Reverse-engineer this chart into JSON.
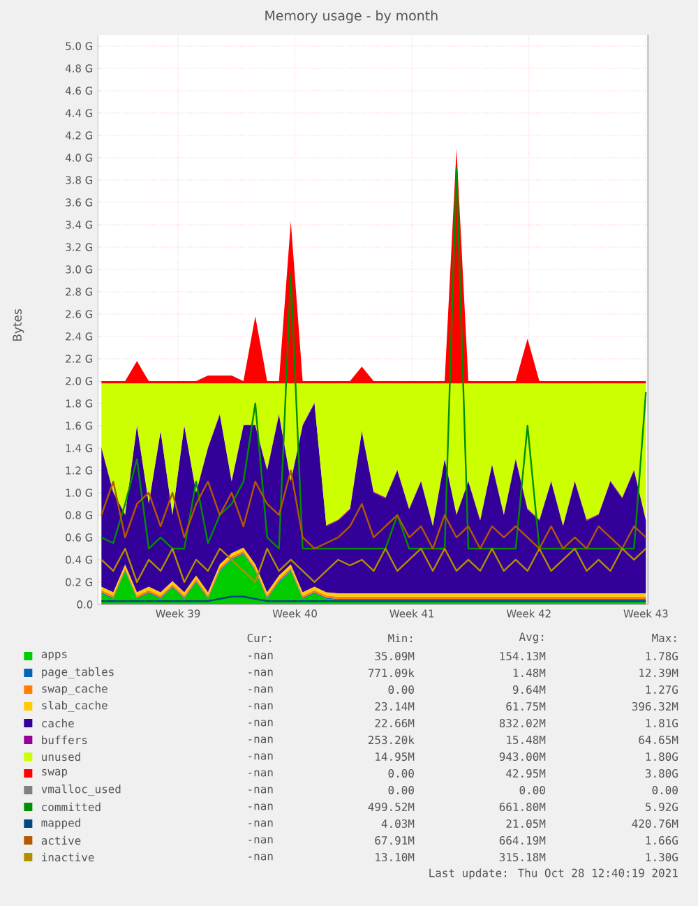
{
  "chart_data": {
    "type": "area",
    "title": "Memory usage - by month",
    "ylabel": "Bytes",
    "stacked": true,
    "grid": true,
    "legend": "bottom",
    "xlim": [
      "2021-09-22T05:00",
      "2021-10-25T03:00"
    ],
    "ylim": [
      0,
      5.1
    ],
    "xticks": [
      {
        "value": "2021-09-27",
        "label": "Week 39"
      },
      {
        "value": "2021-10-04",
        "label": "Week 40"
      },
      {
        "value": "2021-10-11",
        "label": "Week 41"
      },
      {
        "value": "2021-10-18",
        "label": "Week 42"
      },
      {
        "value": "2021-10-25",
        "label": "Week 43"
      }
    ],
    "yticks": [
      {
        "value": 0,
        "label": "0.0"
      },
      {
        "value": 0.2,
        "label": "0.2 G"
      },
      {
        "value": 0.4,
        "label": "0.4 G"
      },
      {
        "value": 0.6,
        "label": "0.6 G"
      },
      {
        "value": 0.8,
        "label": "0.8 G"
      },
      {
        "value": 1.0,
        "label": "1.0 G"
      },
      {
        "value": 1.2,
        "label": "1.2 G"
      },
      {
        "value": 1.4,
        "label": "1.4 G"
      },
      {
        "value": 1.6,
        "label": "1.6 G"
      },
      {
        "value": 1.8,
        "label": "1.8 G"
      },
      {
        "value": 2.0,
        "label": "2.0 G"
      },
      {
        "value": 2.2,
        "label": "2.2 G"
      },
      {
        "value": 2.4,
        "label": "2.4 G"
      },
      {
        "value": 2.6,
        "label": "2.6 G"
      },
      {
        "value": 2.8,
        "label": "2.8 G"
      },
      {
        "value": 3.0,
        "label": "3.0 G"
      },
      {
        "value": 3.2,
        "label": "3.2 G"
      },
      {
        "value": 3.4,
        "label": "3.4 G"
      },
      {
        "value": 3.6,
        "label": "3.6 G"
      },
      {
        "value": 3.8,
        "label": "3.8 G"
      },
      {
        "value": 4.0,
        "label": "4.0 G"
      },
      {
        "value": 4.2,
        "label": "4.2 G"
      },
      {
        "value": 4.4,
        "label": "4.4 G"
      },
      {
        "value": 4.6,
        "label": "4.6 G"
      },
      {
        "value": 4.8,
        "label": "4.8 G"
      },
      {
        "value": 5.0,
        "label": "5.0 G"
      }
    ],
    "x": [
      "2021-09-22T10:00",
      "2021-09-23T03:00",
      "2021-09-23T20:00",
      "2021-09-24T13:00",
      "2021-09-25T06:00",
      "2021-09-25T23:00",
      "2021-09-26T16:00",
      "2021-09-27T09:00",
      "2021-09-28T02:00",
      "2021-09-28T19:00",
      "2021-09-29T12:00",
      "2021-09-30T05:00",
      "2021-09-30T22:00",
      "2021-10-01T15:00",
      "2021-10-02T08:00",
      "2021-10-03T01:00",
      "2021-10-03T18:00",
      "2021-10-04T11:00",
      "2021-10-05T04:00",
      "2021-10-05T21:00",
      "2021-10-06T14:00",
      "2021-10-07T07:00",
      "2021-10-08T00:00",
      "2021-10-08T17:00",
      "2021-10-09T10:00",
      "2021-10-10T03:00",
      "2021-10-10T20:00",
      "2021-10-11T13:00",
      "2021-10-12T06:00",
      "2021-10-12T23:00",
      "2021-10-13T16:00",
      "2021-10-14T09:00",
      "2021-10-15T02:00",
      "2021-10-15T19:00",
      "2021-10-16T12:00",
      "2021-10-17T05:00",
      "2021-10-17T22:00",
      "2021-10-18T15:00",
      "2021-10-19T08:00",
      "2021-10-20T01:00",
      "2021-10-20T18:00",
      "2021-10-21T11:00",
      "2021-10-22T04:00",
      "2021-10-22T21:00",
      "2021-10-23T14:00",
      "2021-10-24T07:00",
      "2021-10-25T00:00"
    ],
    "series": [
      {
        "name": "apps",
        "color": "#00cc00",
        "values": [
          0.1,
          0.05,
          0.3,
          0.05,
          0.1,
          0.05,
          0.15,
          0.05,
          0.2,
          0.05,
          0.3,
          0.4,
          0.45,
          0.3,
          0.05,
          0.2,
          0.3,
          0.05,
          0.1,
          0.05,
          0.04,
          0.04,
          0.04,
          0.04,
          0.04,
          0.04,
          0.04,
          0.04,
          0.04,
          0.04,
          0.04,
          0.04,
          0.04,
          0.04,
          0.04,
          0.04,
          0.04,
          0.04,
          0.04,
          0.04,
          0.04,
          0.04,
          0.04,
          0.04,
          0.04,
          0.04,
          0.04
        ]
      },
      {
        "name": "page_tables",
        "color": "#0066b3",
        "values": [
          0.01,
          0.01,
          0.01,
          0.01,
          0.01,
          0.01,
          0.01,
          0.01,
          0.01,
          0.01,
          0.01,
          0.01,
          0.01,
          0.01,
          0.01,
          0.01,
          0.01,
          0.01,
          0.01,
          0.01,
          0.01,
          0.01,
          0.01,
          0.01,
          0.01,
          0.01,
          0.01,
          0.01,
          0.01,
          0.01,
          0.01,
          0.01,
          0.01,
          0.01,
          0.01,
          0.01,
          0.01,
          0.01,
          0.01,
          0.01,
          0.01,
          0.01,
          0.01,
          0.01,
          0.01,
          0.01,
          0.01
        ]
      },
      {
        "name": "swap_cache",
        "color": "#ff8000",
        "values": [
          0.02,
          0.02,
          0.02,
          0.02,
          0.02,
          0.02,
          0.02,
          0.02,
          0.02,
          0.02,
          0.02,
          0.02,
          0.02,
          0.02,
          0.02,
          0.02,
          0.02,
          0.02,
          0.02,
          0.02,
          0.02,
          0.02,
          0.02,
          0.02,
          0.02,
          0.02,
          0.02,
          0.02,
          0.02,
          0.02,
          0.02,
          0.02,
          0.02,
          0.02,
          0.02,
          0.02,
          0.02,
          0.02,
          0.02,
          0.02,
          0.02,
          0.02,
          0.02,
          0.02,
          0.02,
          0.02,
          0.02
        ]
      },
      {
        "name": "slab_cache",
        "color": "#ffcc00",
        "values": [
          0.03,
          0.03,
          0.03,
          0.03,
          0.03,
          0.03,
          0.03,
          0.03,
          0.03,
          0.03,
          0.03,
          0.03,
          0.03,
          0.03,
          0.03,
          0.03,
          0.03,
          0.03,
          0.03,
          0.03,
          0.03,
          0.03,
          0.03,
          0.03,
          0.03,
          0.03,
          0.03,
          0.03,
          0.03,
          0.03,
          0.03,
          0.03,
          0.03,
          0.03,
          0.03,
          0.03,
          0.03,
          0.03,
          0.03,
          0.03,
          0.03,
          0.03,
          0.03,
          0.03,
          0.03,
          0.03,
          0.03
        ]
      },
      {
        "name": "cache",
        "color": "#330099",
        "values": [
          1.24,
          0.89,
          0.44,
          1.49,
          0.74,
          1.44,
          0.59,
          1.49,
          0.74,
          1.29,
          1.34,
          0.64,
          1.09,
          1.24,
          1.09,
          1.44,
          0.74,
          1.49,
          1.64,
          0.59,
          0.65,
          0.75,
          1.45,
          0.9,
          0.85,
          1.1,
          0.75,
          1.0,
          0.6,
          1.2,
          0.7,
          1.0,
          0.65,
          1.15,
          0.7,
          1.2,
          0.75,
          0.65,
          1.0,
          0.6,
          1.0,
          0.65,
          0.7,
          1.0,
          0.85,
          1.1,
          0.65
        ]
      },
      {
        "name": "buffers",
        "color": "#990099",
        "values": [
          0.01,
          0.01,
          0.01,
          0.01,
          0.01,
          0.01,
          0.01,
          0.01,
          0.01,
          0.01,
          0.01,
          0.01,
          0.01,
          0.01,
          0.01,
          0.01,
          0.01,
          0.01,
          0.01,
          0.01,
          0.01,
          0.01,
          0.01,
          0.01,
          0.01,
          0.01,
          0.01,
          0.01,
          0.01,
          0.01,
          0.01,
          0.01,
          0.01,
          0.01,
          0.01,
          0.01,
          0.01,
          0.01,
          0.01,
          0.01,
          0.01,
          0.01,
          0.01,
          0.01,
          0.01,
          0.01,
          0.01
        ]
      },
      {
        "name": "unused",
        "color": "#ccff00",
        "values": [
          0.57,
          0.97,
          1.17,
          0.37,
          1.07,
          0.42,
          1.17,
          0.37,
          0.97,
          0.57,
          0.27,
          0.87,
          0.37,
          0.37,
          0.77,
          0.27,
          0.87,
          0.37,
          0.17,
          1.27,
          1.22,
          1.12,
          0.42,
          0.97,
          1.02,
          0.77,
          1.12,
          0.87,
          1.27,
          0.67,
          1.17,
          0.87,
          1.22,
          0.72,
          1.17,
          0.67,
          1.12,
          1.22,
          0.87,
          1.27,
          0.87,
          1.22,
          1.17,
          0.87,
          1.02,
          0.77,
          1.22
        ]
      },
      {
        "name": "swap",
        "color": "#ff0000",
        "values": [
          0.02,
          0.02,
          0.02,
          0.2,
          0.02,
          0.02,
          0.02,
          0.02,
          0.02,
          0.07,
          0.07,
          0.07,
          0.02,
          0.6,
          0.02,
          0.02,
          1.45,
          0.02,
          0.02,
          0.02,
          0.02,
          0.02,
          0.15,
          0.02,
          0.02,
          0.02,
          0.02,
          0.02,
          0.02,
          0.02,
          2.1,
          0.02,
          0.02,
          0.02,
          0.02,
          0.02,
          0.4,
          0.02,
          0.02,
          0.02,
          0.02,
          0.02,
          0.02,
          0.02,
          0.02,
          0.02,
          0.02
        ]
      },
      {
        "name": "vmalloc_used",
        "type": "line",
        "color": "#808080",
        "values": [
          0,
          0,
          0,
          0,
          0,
          0,
          0,
          0,
          0,
          0,
          0,
          0,
          0,
          0,
          0,
          0,
          0,
          0,
          0,
          0,
          0,
          0,
          0,
          0,
          0,
          0,
          0,
          0,
          0,
          0,
          0,
          0,
          0,
          0,
          0,
          0,
          0,
          0,
          0,
          0,
          0,
          0,
          0,
          0,
          0,
          0,
          0
        ]
      },
      {
        "name": "committed",
        "type": "line",
        "color": "#008f00",
        "values": [
          0.6,
          0.55,
          0.9,
          1.3,
          0.5,
          0.6,
          0.5,
          0.5,
          1.1,
          0.55,
          0.8,
          0.9,
          1.1,
          1.8,
          0.6,
          0.5,
          2.95,
          0.5,
          0.5,
          0.5,
          0.5,
          0.5,
          0.5,
          0.5,
          0.5,
          0.8,
          0.5,
          0.5,
          0.5,
          0.5,
          3.9,
          0.5,
          0.5,
          0.5,
          0.5,
          0.5,
          1.6,
          0.5,
          0.5,
          0.5,
          0.5,
          0.5,
          0.5,
          0.5,
          0.5,
          0.5,
          1.9
        ]
      },
      {
        "name": "mapped",
        "type": "line",
        "color": "#00487d",
        "values": [
          0.03,
          0.03,
          0.03,
          0.03,
          0.03,
          0.03,
          0.03,
          0.03,
          0.03,
          0.03,
          0.05,
          0.07,
          0.07,
          0.05,
          0.03,
          0.03,
          0.03,
          0.03,
          0.03,
          0.03,
          0.03,
          0.03,
          0.03,
          0.03,
          0.03,
          0.03,
          0.03,
          0.03,
          0.03,
          0.03,
          0.03,
          0.03,
          0.03,
          0.03,
          0.03,
          0.03,
          0.03,
          0.03,
          0.03,
          0.03,
          0.03,
          0.03,
          0.03,
          0.03,
          0.03,
          0.03,
          0.03
        ]
      },
      {
        "name": "active",
        "type": "line",
        "color": "#b35a00",
        "values": [
          0.8,
          1.1,
          0.6,
          0.9,
          1.0,
          0.7,
          1.0,
          0.6,
          0.9,
          1.1,
          0.8,
          1.0,
          0.7,
          1.1,
          0.9,
          0.8,
          1.2,
          0.6,
          0.5,
          0.55,
          0.6,
          0.7,
          0.9,
          0.6,
          0.7,
          0.8,
          0.6,
          0.7,
          0.5,
          0.8,
          0.6,
          0.7,
          0.5,
          0.7,
          0.6,
          0.7,
          0.6,
          0.5,
          0.7,
          0.5,
          0.6,
          0.5,
          0.7,
          0.6,
          0.5,
          0.7,
          0.6
        ]
      },
      {
        "name": "inactive",
        "type": "line",
        "color": "#b38f00",
        "values": [
          0.4,
          0.3,
          0.5,
          0.2,
          0.4,
          0.3,
          0.5,
          0.2,
          0.4,
          0.3,
          0.5,
          0.4,
          0.3,
          0.2,
          0.5,
          0.3,
          0.4,
          0.3,
          0.2,
          0.3,
          0.4,
          0.35,
          0.4,
          0.3,
          0.5,
          0.3,
          0.4,
          0.5,
          0.3,
          0.5,
          0.3,
          0.4,
          0.3,
          0.5,
          0.3,
          0.4,
          0.3,
          0.5,
          0.3,
          0.4,
          0.5,
          0.3,
          0.4,
          0.3,
          0.5,
          0.4,
          0.5
        ]
      }
    ],
    "annotations": [
      "Cur:",
      "Min:",
      "Avg:",
      "Max:",
      "-nan",
      "35.09M",
      "154.13M",
      "1.78G",
      "-nan",
      "771.09k",
      "1.48M",
      "12.39M",
      "-nan",
      "0.00",
      "9.64M",
      "1.27G",
      "-nan",
      "23.14M",
      "61.75M",
      "396.32M",
      "-nan",
      "22.66M",
      "832.02M",
      "1.81G",
      "-nan",
      "253.20k",
      "15.48M",
      "64.65M",
      "-nan",
      "14.95M",
      "943.00M",
      "1.80G",
      "-nan",
      "0.00",
      "42.95M",
      "3.80G",
      "-nan",
      "0.00",
      "0.00",
      "0.00",
      "-nan",
      "499.52M",
      "661.80M",
      "5.92G",
      "-nan",
      "4.03M",
      "21.05M",
      "420.76M",
      "-nan",
      "67.91M",
      "664.19M",
      "1.66G",
      "-nan",
      "13.10M",
      "315.18M",
      "1.30G",
      "Last update:  Thu Oct 28 12:40:19 2021"
    ]
  }
}
